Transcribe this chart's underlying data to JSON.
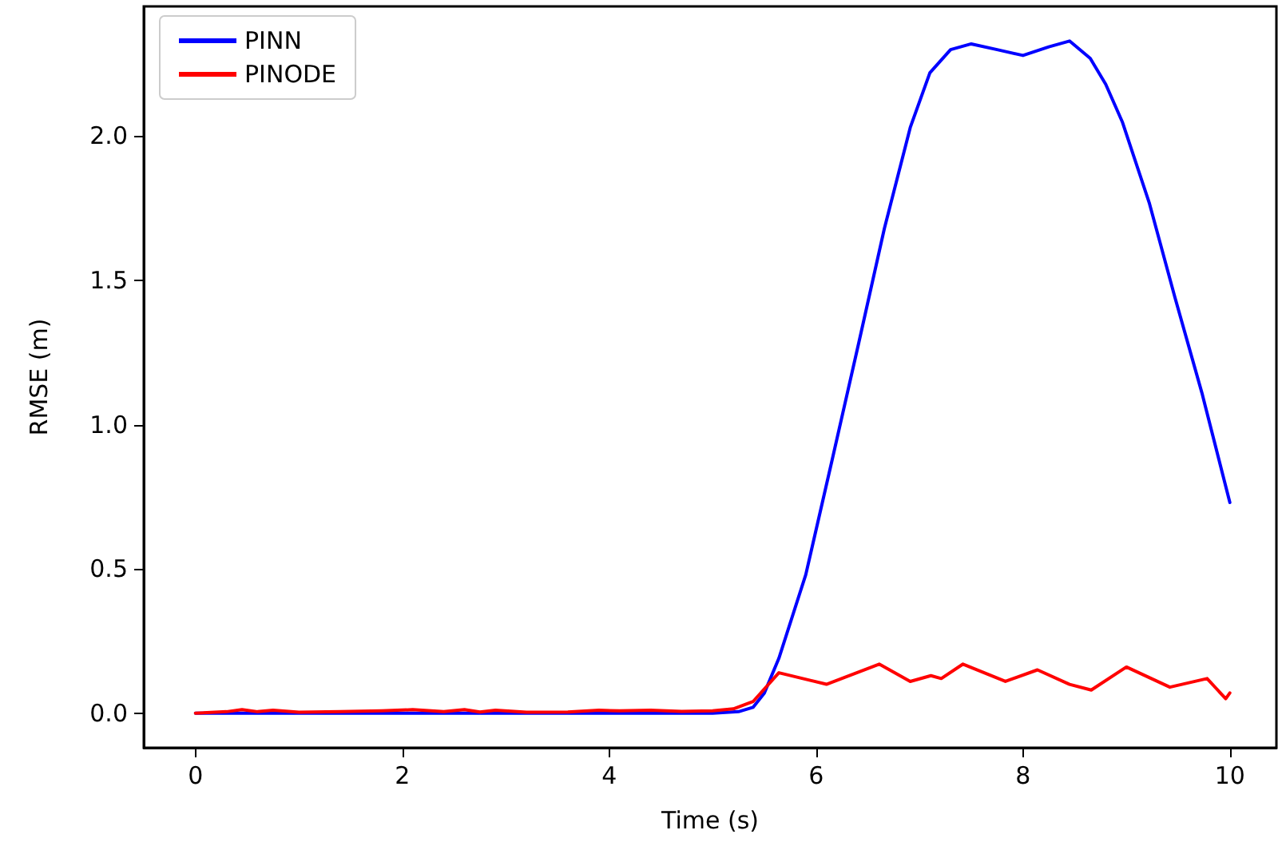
{
  "chart_data": {
    "type": "line",
    "xlabel": "Time (s)",
    "ylabel": "RMSE (m)",
    "xlim": [
      -0.5,
      10.45
    ],
    "ylim": [
      -0.12,
      2.45
    ],
    "xticks": [
      0,
      2,
      4,
      6,
      8,
      10
    ],
    "yticks": [
      {
        "value": 0,
        "label": "0.0"
      },
      {
        "value": 0.5,
        "label": "0.5"
      },
      {
        "value": 1,
        "label": "1.0"
      },
      {
        "value": 1.5,
        "label": "1.5"
      },
      {
        "value": 2,
        "label": "2.0"
      }
    ],
    "grid": false,
    "legend": "top left",
    "marker": "none",
    "line_style": "solid",
    "series": [
      {
        "name": "PINN",
        "color": "#0000ff",
        "x": [
          0,
          1,
          2,
          3,
          4,
          5,
          5.25,
          5.39,
          5.5,
          5.64,
          5.9,
          6.15,
          6.41,
          6.66,
          6.91,
          7.1,
          7.3,
          7.5,
          7.75,
          8.0,
          8.25,
          8.45,
          8.65,
          8.8,
          8.96,
          9.22,
          9.47,
          9.73,
          10
        ],
        "values": [
          0,
          0,
          0,
          0,
          0,
          0,
          0.005,
          0.02,
          0.07,
          0.19,
          0.48,
          0.87,
          1.28,
          1.68,
          2.03,
          2.22,
          2.3,
          2.32,
          2.3,
          2.28,
          2.31,
          2.33,
          2.27,
          2.18,
          2.05,
          1.77,
          1.44,
          1.11,
          0.73
        ]
      },
      {
        "name": "PINODE",
        "color": "#ff0000",
        "x": [
          0,
          0.3,
          0.45,
          0.6,
          0.75,
          1.0,
          1.4,
          1.8,
          2.1,
          2.4,
          2.6,
          2.75,
          2.9,
          3.2,
          3.6,
          3.9,
          4.1,
          4.4,
          4.7,
          5.0,
          5.2,
          5.39,
          5.64,
          6.1,
          6.61,
          6.91,
          7.11,
          7.21,
          7.42,
          7.83,
          8.14,
          8.45,
          8.66,
          9.0,
          9.42,
          9.78,
          9.96,
          10
        ],
        "values": [
          0,
          0.005,
          0.012,
          0.005,
          0.01,
          0.003,
          0.005,
          0.008,
          0.012,
          0.005,
          0.012,
          0.004,
          0.01,
          0.003,
          0.004,
          0.01,
          0.008,
          0.01,
          0.006,
          0.008,
          0.015,
          0.04,
          0.14,
          0.1,
          0.17,
          0.11,
          0.13,
          0.12,
          0.17,
          0.11,
          0.15,
          0.1,
          0.08,
          0.16,
          0.09,
          0.12,
          0.05,
          0.07
        ]
      }
    ]
  }
}
